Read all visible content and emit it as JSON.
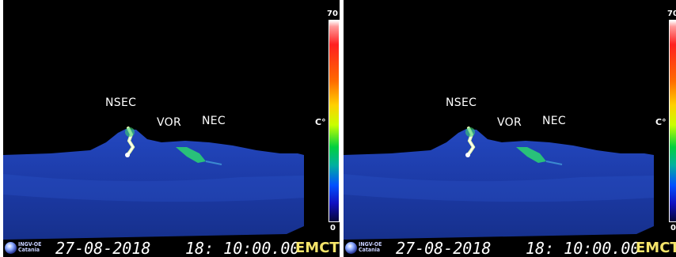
{
  "panels": [
    {
      "labels": {
        "nsec": "NSEC",
        "vor": "VOR",
        "nec": "NEC"
      },
      "scale": {
        "max": "70",
        "min": "0",
        "unit": "C°"
      },
      "footer": {
        "institute_line1": "INGV-OE",
        "institute_line2": "Catania",
        "date": "27-08-2018",
        "time": "18: 10:00.00",
        "station": "EMCT"
      }
    },
    {
      "labels": {
        "nsec": "NSEC",
        "vor": "VOR",
        "nec": "NEC"
      },
      "scale": {
        "max": "70",
        "min": "0",
        "unit": "C°"
      },
      "footer": {
        "institute_line1": "INGV-OE",
        "institute_line2": "Catania",
        "date": "27-08-2018",
        "time": "18: 10:00.00",
        "station": "EMCT"
      }
    }
  ],
  "colors": {
    "sky": "#000000",
    "volcano": "#1a3fb0",
    "hot_lava": "#f4ffd0",
    "warm_flow": "#29c07a",
    "station_text": "#f5e56a"
  }
}
